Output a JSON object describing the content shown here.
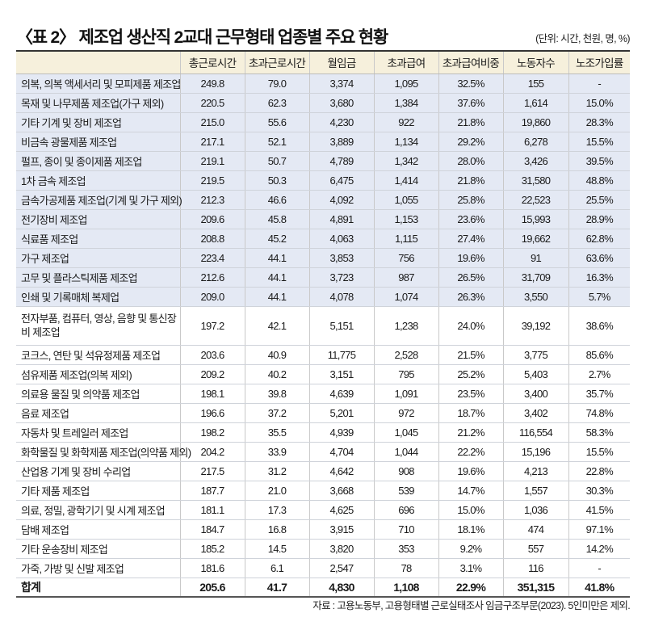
{
  "title": "〈표 2〉 제조업 생산직 2교대 근무형태 업종별 주요 현황",
  "unit": "(단위: 시간, 천원, 명, %)",
  "columns": [
    "",
    "총근로시간",
    "초과근로시간",
    "월임금",
    "초과급여",
    "초과급여비중",
    "노동자수",
    "노조가입률"
  ],
  "rows": [
    [
      "의복, 의복 액세서리 및 모피제품 제조업",
      "249.8",
      "79.0",
      "3,374",
      "1,095",
      "32.5%",
      "155",
      "-"
    ],
    [
      "목재 및 나무제품 제조업(가구 제외)",
      "220.5",
      "62.3",
      "3,680",
      "1,384",
      "37.6%",
      "1,614",
      "15.0%"
    ],
    [
      "기타 기계 및 장비 제조업",
      "215.0",
      "55.6",
      "4,230",
      "922",
      "21.8%",
      "19,860",
      "28.3%"
    ],
    [
      "비금속 광물제품 제조업",
      "217.1",
      "52.1",
      "3,889",
      "1,134",
      "29.2%",
      "6,278",
      "15.5%"
    ],
    [
      "펄프, 종이 및 종이제품 제조업",
      "219.1",
      "50.7",
      "4,789",
      "1,342",
      "28.0%",
      "3,426",
      "39.5%"
    ],
    [
      "1차 금속 제조업",
      "219.5",
      "50.3",
      "6,475",
      "1,414",
      "21.8%",
      "31,580",
      "48.8%"
    ],
    [
      "금속가공제품 제조업(기계 및 가구 제외)",
      "212.3",
      "46.6",
      "4,092",
      "1,055",
      "25.8%",
      "22,523",
      "25.5%"
    ],
    [
      "전기장비 제조업",
      "209.6",
      "45.8",
      "4,891",
      "1,153",
      "23.6%",
      "15,993",
      "28.9%"
    ],
    [
      "식료품 제조업",
      "208.8",
      "45.2",
      "4,063",
      "1,115",
      "27.4%",
      "19,662",
      "62.8%"
    ],
    [
      "가구 제조업",
      "223.4",
      "44.1",
      "3,853",
      "756",
      "19.6%",
      "91",
      "63.6%"
    ],
    [
      "고무 및 플라스틱제품 제조업",
      "212.6",
      "44.1",
      "3,723",
      "987",
      "26.5%",
      "31,709",
      "16.3%"
    ],
    [
      "인쇄 및 기록매체 복제업",
      "209.0",
      "44.1",
      "4,078",
      "1,074",
      "26.3%",
      "3,550",
      "5.7%"
    ],
    [
      "전자부품, 컴퓨터, 영상, 음향 및 통신장비 제조업",
      "197.2",
      "42.1",
      "5,151",
      "1,238",
      "24.0%",
      "39,192",
      "38.6%"
    ],
    [
      "코크스, 연탄 및 석유정제품 제조업",
      "203.6",
      "40.9",
      "11,775",
      "2,528",
      "21.5%",
      "3,775",
      "85.6%"
    ],
    [
      "섬유제품 제조업(의복 제외)",
      "209.2",
      "40.2",
      "3,151",
      "795",
      "25.2%",
      "5,403",
      "2.7%"
    ],
    [
      "의료용 물질 및 의약품 제조업",
      "198.1",
      "39.8",
      "4,639",
      "1,091",
      "23.5%",
      "3,400",
      "35.7%"
    ],
    [
      "음료 제조업",
      "196.6",
      "37.2",
      "5,201",
      "972",
      "18.7%",
      "3,402",
      "74.8%"
    ],
    [
      "자동차 및 트레일러 제조업",
      "198.2",
      "35.5",
      "4,939",
      "1,045",
      "21.2%",
      "116,554",
      "58.3%"
    ],
    [
      "화학물질 및 화학제품 제조업(의약품 제외)",
      "204.2",
      "33.9",
      "4,704",
      "1,044",
      "22.2%",
      "15,196",
      "15.5%"
    ],
    [
      "산업용 기계 및 장비 수리업",
      "217.5",
      "31.2",
      "4,642",
      "908",
      "19.6%",
      "4,213",
      "22.8%"
    ],
    [
      "기타 제품 제조업",
      "187.7",
      "21.0",
      "3,668",
      "539",
      "14.7%",
      "1,557",
      "30.3%"
    ],
    [
      "의료, 정밀, 광학기기 및 시계 제조업",
      "181.1",
      "17.3",
      "4,625",
      "696",
      "15.0%",
      "1,036",
      "41.5%"
    ],
    [
      "담배 제조업",
      "184.7",
      "16.8",
      "3,915",
      "710",
      "18.1%",
      "474",
      "97.1%"
    ],
    [
      "기타 운송장비 제조업",
      "185.2",
      "14.5",
      "3,820",
      "353",
      "9.2%",
      "557",
      "14.2%"
    ],
    [
      "가죽, 가방 및 신발 제조업",
      "181.6",
      "6.1",
      "2,547",
      "78",
      "3.1%",
      "116",
      "-"
    ]
  ],
  "highlighted_rows": 12,
  "total": [
    "합계",
    "205.6",
    "41.7",
    "4,830",
    "1,108",
    "22.9%",
    "351,315",
    "41.8%"
  ],
  "source": "자료 : 고용노동부, 고용형태별 근로실태조사 임금구조부문(2023). 5인미만은 제외.",
  "colors": {
    "header_bg": "#f6f0dc",
    "highlight_bg": "#e4e9f4"
  }
}
